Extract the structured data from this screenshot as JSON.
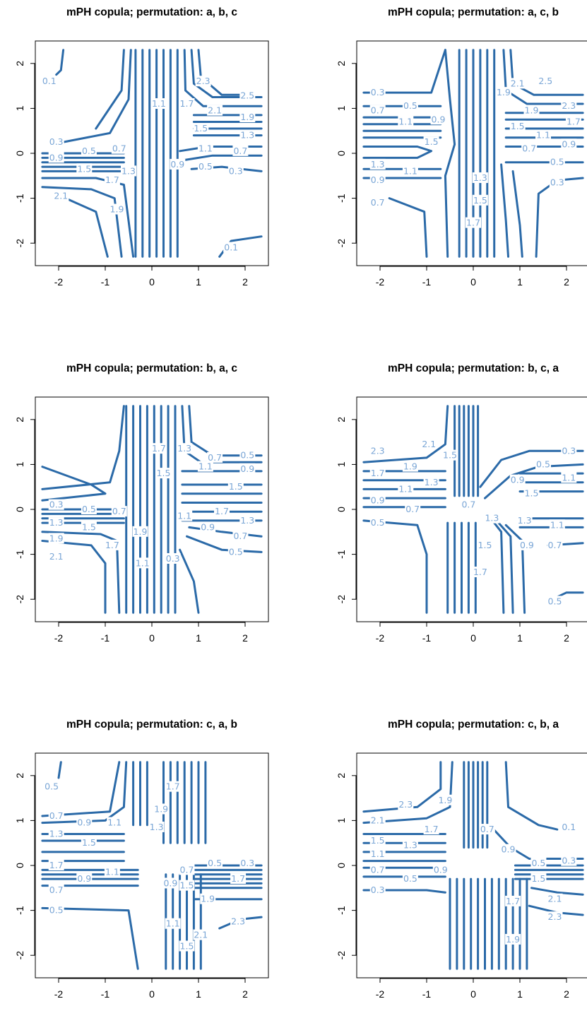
{
  "figure": {
    "line_color": "#2b6aa8",
    "label_color": "#7aa6d6",
    "axis_ticks": [
      "-2",
      "-1",
      "0",
      "1",
      "2"
    ]
  },
  "chart_data": [
    {
      "type": "contour",
      "title": "mPH copula; permutation: a, b, c",
      "xlim": [
        -2.5,
        2.5
      ],
      "ylim": [
        -2.5,
        2.5
      ],
      "xticks": [
        -2,
        -1,
        0,
        1,
        2
      ],
      "yticks": [
        -2,
        -1,
        0,
        1,
        2
      ],
      "xlabel": "",
      "ylabel": "",
      "grid": false,
      "contour_labels": [
        "0.1",
        "0.3",
        "0.5",
        "0.7",
        "0.9",
        "1.1",
        "1.3",
        "1.5",
        "1.7",
        "1.9",
        "2.1",
        "2.3",
        "2.5"
      ],
      "label_positions": [
        {
          "text": "0.1",
          "x": -2.2,
          "y": 1.6
        },
        {
          "text": "2.3",
          "x": 1.1,
          "y": 1.6
        },
        {
          "text": "2.5",
          "x": 2.05,
          "y": 1.28
        },
        {
          "text": "1.1",
          "x": 0.15,
          "y": 1.1
        },
        {
          "text": "1.7",
          "x": 0.75,
          "y": 1.1
        },
        {
          "text": "2.1",
          "x": 1.35,
          "y": 0.95
        },
        {
          "text": "1.9",
          "x": 2.05,
          "y": 0.8
        },
        {
          "text": "1.5",
          "x": 1.05,
          "y": 0.55
        },
        {
          "text": "1.3",
          "x": 2.05,
          "y": 0.4
        },
        {
          "text": "0.3",
          "x": -2.05,
          "y": 0.25
        },
        {
          "text": "0.5",
          "x": -1.35,
          "y": 0.05
        },
        {
          "text": "0.7",
          "x": -0.7,
          "y": 0.1
        },
        {
          "text": "0.9",
          "x": -2.05,
          "y": -0.1
        },
        {
          "text": "1.1",
          "x": 1.15,
          "y": 0.1
        },
        {
          "text": "0.7",
          "x": 1.9,
          "y": 0.05
        },
        {
          "text": "0.9",
          "x": 0.55,
          "y": -0.25
        },
        {
          "text": "0.5",
          "x": 1.15,
          "y": -0.3
        },
        {
          "text": "0.3",
          "x": 1.8,
          "y": -0.4
        },
        {
          "text": "1.5",
          "x": -1.45,
          "y": -0.35
        },
        {
          "text": "1.3",
          "x": -0.5,
          "y": -0.4
        },
        {
          "text": "1.7",
          "x": -0.85,
          "y": -0.6
        },
        {
          "text": "2.1",
          "x": -1.95,
          "y": -0.95
        },
        {
          "text": "1.9",
          "x": -0.75,
          "y": -1.25
        },
        {
          "text": "0.1",
          "x": 1.7,
          "y": -2.1
        }
      ]
    },
    {
      "type": "contour",
      "title": "mPH copula; permutation: a, c, b",
      "xlim": [
        -2.5,
        2.5
      ],
      "ylim": [
        -2.5,
        2.5
      ],
      "xticks": [
        -2,
        -1,
        0,
        1,
        2
      ],
      "yticks": [
        -2,
        -1,
        0,
        1,
        2
      ],
      "xlabel": "",
      "ylabel": "",
      "grid": false,
      "contour_labels": [
        "0.3",
        "0.5",
        "0.7",
        "0.9",
        "1.1",
        "1.3",
        "1.5",
        "1.7",
        "1.9",
        "2.1",
        "2.3",
        "2.5"
      ],
      "label_positions": [
        {
          "text": "0.3",
          "x": -2.05,
          "y": 1.35
        },
        {
          "text": "0.5",
          "x": -1.35,
          "y": 1.05
        },
        {
          "text": "0.7",
          "x": -2.05,
          "y": 0.95
        },
        {
          "text": "1.1",
          "x": -1.45,
          "y": 0.7
        },
        {
          "text": "0.9",
          "x": -0.75,
          "y": 0.75
        },
        {
          "text": "1.5",
          "x": -0.9,
          "y": 0.25
        },
        {
          "text": "1.3",
          "x": -2.05,
          "y": -0.25
        },
        {
          "text": "1.1",
          "x": -1.35,
          "y": -0.4
        },
        {
          "text": "0.9",
          "x": -2.05,
          "y": -0.6
        },
        {
          "text": "0.7",
          "x": -2.05,
          "y": -1.1
        },
        {
          "text": "1.3",
          "x": 0.15,
          "y": -0.55
        },
        {
          "text": "1.5",
          "x": 0.15,
          "y": -1.05
        },
        {
          "text": "1.7",
          "x": 0.0,
          "y": -1.55
        },
        {
          "text": "2.1",
          "x": 0.95,
          "y": 1.55
        },
        {
          "text": "2.5",
          "x": 1.55,
          "y": 1.6
        },
        {
          "text": "1.9",
          "x": 0.65,
          "y": 1.35
        },
        {
          "text": "2.3",
          "x": 2.05,
          "y": 1.05
        },
        {
          "text": "1.9",
          "x": 1.25,
          "y": 0.95
        },
        {
          "text": "1.7",
          "x": 2.15,
          "y": 0.7
        },
        {
          "text": "1.5",
          "x": 0.95,
          "y": 0.6
        },
        {
          "text": "1.1",
          "x": 1.5,
          "y": 0.4
        },
        {
          "text": "0.9",
          "x": 2.05,
          "y": 0.2
        },
        {
          "text": "0.7",
          "x": 1.2,
          "y": 0.1
        },
        {
          "text": "0.5",
          "x": 1.8,
          "y": -0.2
        },
        {
          "text": "0.3",
          "x": 1.8,
          "y": -0.65
        }
      ]
    },
    {
      "type": "contour",
      "title": "mPH copula; permutation: b, a, c",
      "xlim": [
        -2.5,
        2.5
      ],
      "ylim": [
        -2.5,
        2.5
      ],
      "xticks": [
        -2,
        -1,
        0,
        1,
        2
      ],
      "yticks": [
        -2,
        -1,
        0,
        1,
        2
      ],
      "xlabel": "",
      "ylabel": "",
      "grid": false,
      "contour_labels": [
        "0.3",
        "0.5",
        "0.7",
        "0.9",
        "1.1",
        "1.3",
        "1.5",
        "1.7",
        "1.9",
        "2.1"
      ],
      "label_positions": [
        {
          "text": "1.7",
          "x": 0.15,
          "y": 1.35
        },
        {
          "text": "1.3",
          "x": 0.7,
          "y": 1.35
        },
        {
          "text": "0.7",
          "x": 1.35,
          "y": 1.15
        },
        {
          "text": "0.5",
          "x": 2.05,
          "y": 1.2
        },
        {
          "text": "1.1",
          "x": 1.15,
          "y": 0.95
        },
        {
          "text": "0.9",
          "x": 2.05,
          "y": 0.9
        },
        {
          "text": "1.5",
          "x": 0.25,
          "y": 0.8
        },
        {
          "text": "1.5",
          "x": 1.8,
          "y": 0.5
        },
        {
          "text": "0.3",
          "x": -2.05,
          "y": 0.1
        },
        {
          "text": "0.5",
          "x": -1.35,
          "y": 0.0
        },
        {
          "text": "0.7",
          "x": -0.7,
          "y": -0.05
        },
        {
          "text": "1.7",
          "x": 1.5,
          "y": -0.05
        },
        {
          "text": "1.1",
          "x": 0.7,
          "y": -0.15
        },
        {
          "text": "1.3",
          "x": 2.05,
          "y": -0.25
        },
        {
          "text": "0.9",
          "x": 1.2,
          "y": -0.4
        },
        {
          "text": "1.3",
          "x": -2.05,
          "y": -0.3
        },
        {
          "text": "1.5",
          "x": -1.35,
          "y": -0.4
        },
        {
          "text": "1.9",
          "x": -0.25,
          "y": -0.5
        },
        {
          "text": "1.9",
          "x": -2.05,
          "y": -0.65
        },
        {
          "text": "1.7",
          "x": -0.85,
          "y": -0.8
        },
        {
          "text": "0.7",
          "x": 1.9,
          "y": -0.6
        },
        {
          "text": "0.5",
          "x": 1.8,
          "y": -0.95
        },
        {
          "text": "2.1",
          "x": -2.05,
          "y": -1.05
        },
        {
          "text": "0.3",
          "x": 0.45,
          "y": -1.1
        },
        {
          "text": "1.1",
          "x": -0.2,
          "y": -1.2
        }
      ]
    },
    {
      "type": "contour",
      "title": "mPH copula; permutation: b, c, a",
      "xlim": [
        -2.5,
        2.5
      ],
      "ylim": [
        -2.5,
        2.5
      ],
      "xticks": [
        -2,
        -1,
        0,
        1,
        2
      ],
      "yticks": [
        -2,
        -1,
        0,
        1,
        2
      ],
      "xlabel": "",
      "ylabel": "",
      "grid": false,
      "contour_labels": [
        "0.3",
        "0.5",
        "0.7",
        "0.9",
        "1.1",
        "1.3",
        "1.5",
        "1.7",
        "1.9",
        "2.1",
        "2.3"
      ],
      "label_positions": [
        {
          "text": "2.3",
          "x": -2.05,
          "y": 1.3
        },
        {
          "text": "2.1",
          "x": -0.95,
          "y": 1.45
        },
        {
          "text": "1.9",
          "x": -1.35,
          "y": 0.95
        },
        {
          "text": "1.7",
          "x": -2.05,
          "y": 0.8
        },
        {
          "text": "1.3",
          "x": -0.9,
          "y": 0.6
        },
        {
          "text": "1.5",
          "x": -0.5,
          "y": 1.2
        },
        {
          "text": "1.1",
          "x": -1.45,
          "y": 0.45
        },
        {
          "text": "0.9",
          "x": -2.05,
          "y": 0.2
        },
        {
          "text": "0.7",
          "x": -1.3,
          "y": 0.0
        },
        {
          "text": "0.5",
          "x": -2.05,
          "y": -0.3
        },
        {
          "text": "0.7",
          "x": -0.1,
          "y": 0.1
        },
        {
          "text": "0.3",
          "x": 2.05,
          "y": 1.3
        },
        {
          "text": "0.5",
          "x": 1.5,
          "y": 1.0
        },
        {
          "text": "1.1",
          "x": 2.05,
          "y": 0.7
        },
        {
          "text": "0.9",
          "x": 0.95,
          "y": 0.65
        },
        {
          "text": "1.5",
          "x": 1.25,
          "y": 0.35
        },
        {
          "text": "1.3",
          "x": 0.4,
          "y": -0.2
        },
        {
          "text": "1.3",
          "x": 1.1,
          "y": -0.25
        },
        {
          "text": "1.1",
          "x": 1.8,
          "y": -0.35
        },
        {
          "text": "1.5",
          "x": 0.25,
          "y": -0.8
        },
        {
          "text": "0.9",
          "x": 1.15,
          "y": -0.8
        },
        {
          "text": "0.7",
          "x": 1.75,
          "y": -0.8
        },
        {
          "text": "1.7",
          "x": 0.15,
          "y": -1.4
        },
        {
          "text": "0.5",
          "x": 1.75,
          "y": -2.05
        }
      ]
    },
    {
      "type": "contour",
      "title": "mPH copula; permutation: c, a, b",
      "xlim": [
        -2.5,
        2.5
      ],
      "ylim": [
        -2.5,
        2.5
      ],
      "xticks": [
        -2,
        -1,
        0,
        1,
        2
      ],
      "yticks": [
        -2,
        -1,
        0,
        1,
        2
      ],
      "xlabel": "",
      "ylabel": "",
      "grid": false,
      "contour_labels": [
        "0.3",
        "0.5",
        "0.7",
        "0.9",
        "1.1",
        "1.3",
        "1.5",
        "1.7",
        "1.9",
        "2.1",
        "2.3"
      ],
      "label_positions": [
        {
          "text": "0.5",
          "x": -2.15,
          "y": 1.75
        },
        {
          "text": "1.7",
          "x": 0.45,
          "y": 1.75
        },
        {
          "text": "0.7",
          "x": -2.05,
          "y": 1.1
        },
        {
          "text": "0.9",
          "x": -1.45,
          "y": 0.95
        },
        {
          "text": "1.1",
          "x": -0.8,
          "y": 0.95
        },
        {
          "text": "1.9",
          "x": 0.2,
          "y": 1.25
        },
        {
          "text": "1.3",
          "x": 0.1,
          "y": 0.85
        },
        {
          "text": "1.3",
          "x": -2.05,
          "y": 0.7
        },
        {
          "text": "1.5",
          "x": -1.35,
          "y": 0.5
        },
        {
          "text": "1.7",
          "x": -2.05,
          "y": 0.0
        },
        {
          "text": "0.5",
          "x": 1.35,
          "y": 0.05
        },
        {
          "text": "0.3",
          "x": 2.05,
          "y": 0.05
        },
        {
          "text": "0.7",
          "x": 0.75,
          "y": -0.1
        },
        {
          "text": "1.1",
          "x": -0.85,
          "y": -0.15
        },
        {
          "text": "0.9",
          "x": -1.45,
          "y": -0.3
        },
        {
          "text": "0.7",
          "x": -2.05,
          "y": -0.55
        },
        {
          "text": "0.9",
          "x": 0.4,
          "y": -0.4
        },
        {
          "text": "1.5",
          "x": 0.75,
          "y": -0.45
        },
        {
          "text": "1.7",
          "x": 1.85,
          "y": -0.3
        },
        {
          "text": "1.9",
          "x": 1.2,
          "y": -0.75
        },
        {
          "text": "0.5",
          "x": -2.05,
          "y": -1.0
        },
        {
          "text": "1.1",
          "x": 0.45,
          "y": -1.3
        },
        {
          "text": "2.1",
          "x": 1.05,
          "y": -1.55
        },
        {
          "text": "2.3",
          "x": 1.85,
          "y": -1.25
        },
        {
          "text": "1.5",
          "x": 0.75,
          "y": -1.8
        }
      ]
    },
    {
      "type": "contour",
      "title": "mPH copula; permutation: c, b, a",
      "xlim": [
        -2.5,
        2.5
      ],
      "ylim": [
        -2.5,
        2.5
      ],
      "xticks": [
        -2,
        -1,
        0,
        1,
        2
      ],
      "yticks": [
        -2,
        -1,
        0,
        1,
        2
      ],
      "xlabel": "",
      "ylabel": "",
      "grid": false,
      "contour_labels": [
        "0.1",
        "0.3",
        "0.5",
        "0.7",
        "0.9",
        "1.1",
        "1.3",
        "1.5",
        "1.7",
        "1.9",
        "2.1",
        "2.3"
      ],
      "label_positions": [
        {
          "text": "2.3",
          "x": -1.45,
          "y": 1.35
        },
        {
          "text": "1.9",
          "x": -0.6,
          "y": 1.45
        },
        {
          "text": "2.1",
          "x": -2.05,
          "y": 1.0
        },
        {
          "text": "1.7",
          "x": -0.9,
          "y": 0.8
        },
        {
          "text": "0.7",
          "x": 0.3,
          "y": 0.8
        },
        {
          "text": "0.9",
          "x": 0.75,
          "y": 0.35
        },
        {
          "text": "1.5",
          "x": -2.05,
          "y": 0.55
        },
        {
          "text": "1.3",
          "x": -1.35,
          "y": 0.45
        },
        {
          "text": "1.1",
          "x": -2.05,
          "y": 0.25
        },
        {
          "text": "0.1",
          "x": 2.05,
          "y": 0.85
        },
        {
          "text": "0.5",
          "x": 1.4,
          "y": 0.05
        },
        {
          "text": "0.3",
          "x": 2.05,
          "y": 0.1
        },
        {
          "text": "0.7",
          "x": -2.05,
          "y": -0.1
        },
        {
          "text": "0.9",
          "x": -0.7,
          "y": -0.1
        },
        {
          "text": "0.5",
          "x": -1.35,
          "y": -0.3
        },
        {
          "text": "1.5",
          "x": 1.4,
          "y": -0.3
        },
        {
          "text": "0.3",
          "x": -2.05,
          "y": -0.55
        },
        {
          "text": "1.7",
          "x": 0.85,
          "y": -0.8
        },
        {
          "text": "2.1",
          "x": 1.75,
          "y": -0.75
        },
        {
          "text": "2.3",
          "x": 1.75,
          "y": -1.15
        },
        {
          "text": "1.9",
          "x": 0.85,
          "y": -1.65
        }
      ]
    }
  ]
}
